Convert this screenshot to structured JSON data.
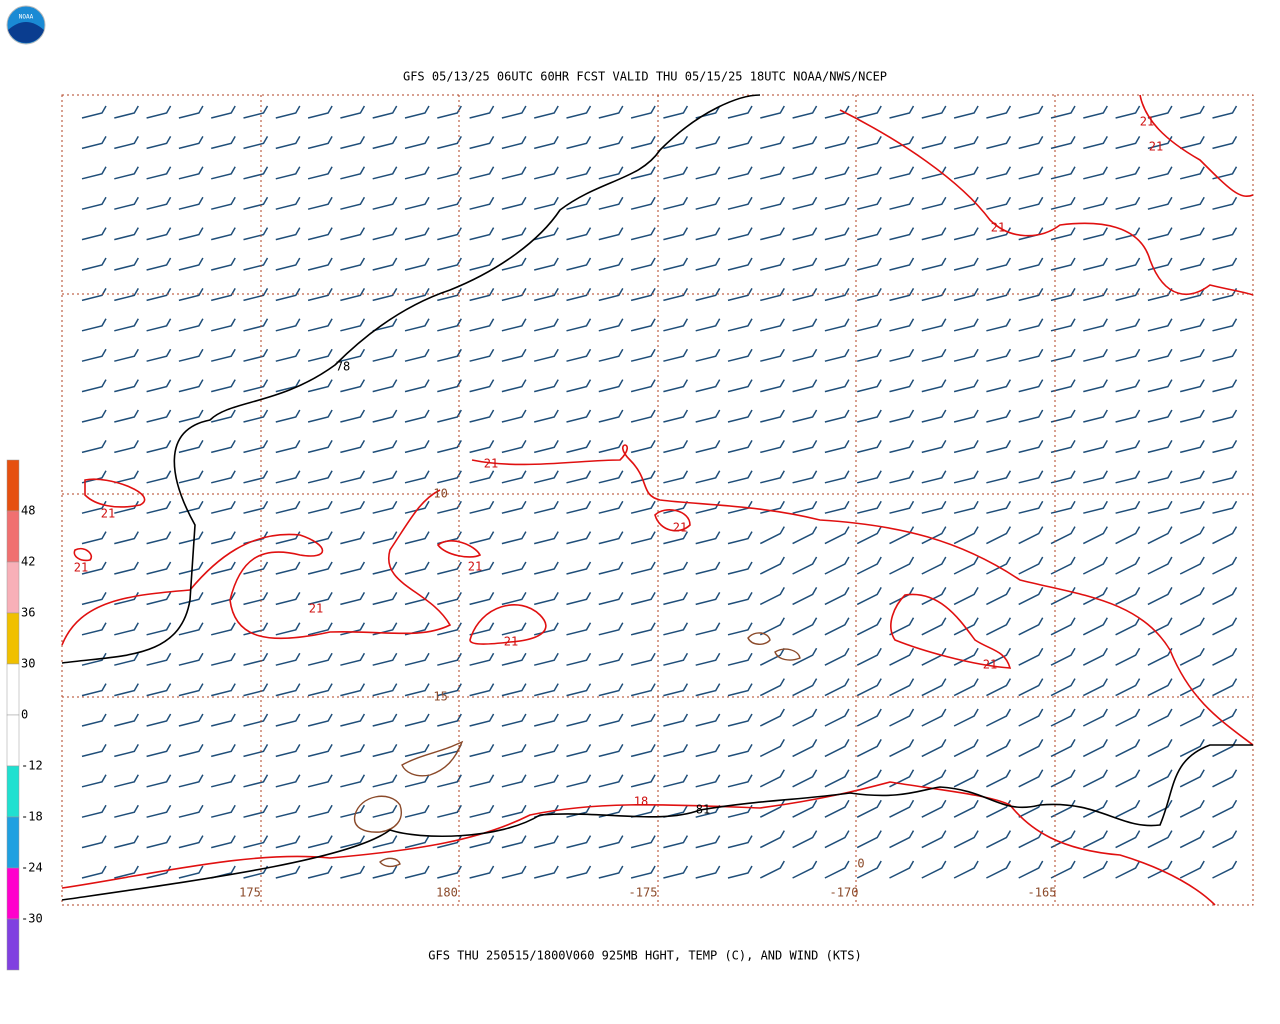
{
  "header": {
    "logo": "NOAA",
    "title": "GFS 05/13/25 06UTC 60HR FCST VALID THU 05/15/25 18UTC NOAA/NWS/NCEP"
  },
  "footer": {
    "caption": "GFS THU 250515/1800V060 925MB HGHT, TEMP (C), AND WIND (KTS)"
  },
  "color_scale": {
    "labels": [
      "48",
      "42",
      "36",
      "30",
      "0",
      "-12",
      "-18",
      "-24",
      "-30"
    ]
  },
  "map": {
    "height_labels": [
      "78",
      "81"
    ],
    "temperature_labels": [
      "21",
      "21",
      "21",
      "21",
      "21",
      "21",
      "21",
      "21",
      "21",
      "21",
      "21",
      "18"
    ],
    "longitude_labels": [
      "175",
      "180",
      "-175",
      "-170",
      "-165"
    ],
    "latitude_labels": [
      "-10",
      "-15"
    ],
    "other_labels": [
      "0"
    ]
  }
}
